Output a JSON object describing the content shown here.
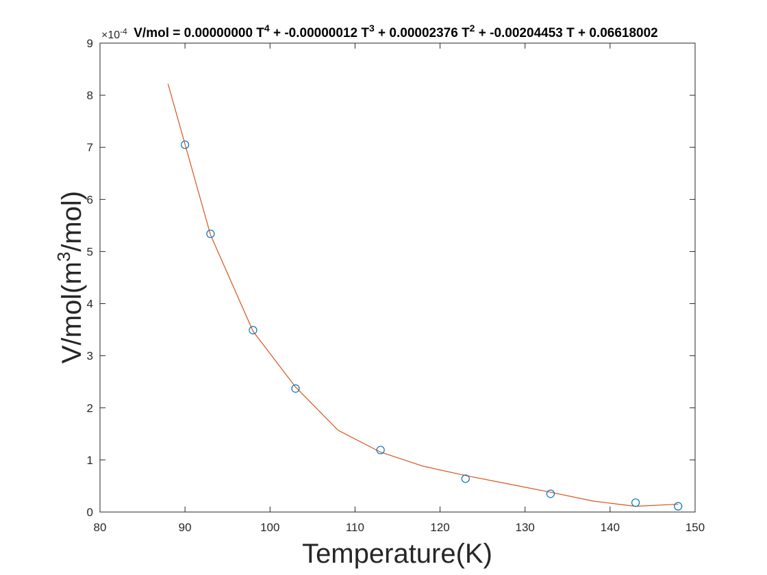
{
  "chart_data": {
    "type": "scatter",
    "title": {
      "parts": [
        {
          "text": "V/mol = 0.00000000 T"
        },
        {
          "text": "4",
          "sup": true
        },
        {
          "text": " + -0.00000012 T"
        },
        {
          "text": "3",
          "sup": true
        },
        {
          "text": " + 0.00002376 T"
        },
        {
          "text": "2",
          "sup": true
        },
        {
          "text": " + -0.00204453 T + 0.06618002"
        }
      ]
    },
    "xlabel": "Temperature(K)",
    "ylabel": {
      "parts": [
        {
          "text": "V/mol(m"
        },
        {
          "text": "3",
          "sup": true
        },
        {
          "text": "/mol)"
        }
      ]
    },
    "y_exponent": {
      "base": "×10",
      "power": "-4"
    },
    "xlim": [
      80,
      150
    ],
    "ylim": [
      0,
      9
    ],
    "xticks": [
      80,
      90,
      100,
      110,
      120,
      130,
      140,
      150
    ],
    "yticks": [
      0,
      1,
      2,
      3,
      4,
      5,
      6,
      7,
      8,
      9
    ],
    "grid": false,
    "series": [
      {
        "kind": "markers",
        "marker": "circle",
        "color": "#0072BD",
        "x": [
          90,
          93,
          98,
          103,
          113,
          123,
          133,
          143,
          148
        ],
        "y": [
          7.05,
          5.34,
          3.49,
          2.37,
          1.19,
          0.64,
          0.35,
          0.18,
          0.11
        ]
      },
      {
        "kind": "line",
        "color": "#D95319",
        "x": [
          88,
          93,
          98,
          103,
          108,
          113,
          118,
          123,
          128,
          133,
          138,
          143,
          148
        ],
        "y": [
          8.22,
          5.32,
          3.47,
          2.4,
          1.57,
          1.15,
          0.88,
          0.7,
          0.54,
          0.38,
          0.21,
          0.11,
          0.15
        ]
      }
    ]
  }
}
